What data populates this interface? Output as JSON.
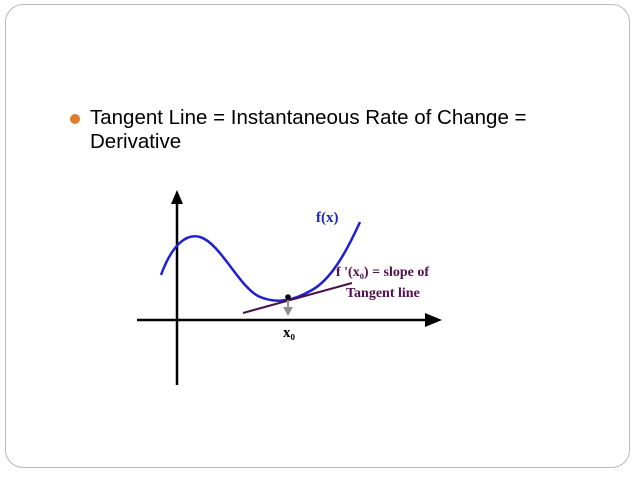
{
  "bullet": {
    "text": "Tangent Line = Instantaneous Rate of Change = Derivative",
    "dot_color": "#e07a2c"
  },
  "diagram": {
    "function_label": "f(x)",
    "slope_label": "f '(x₀) = slope of",
    "tangent_label": "Tangent line",
    "point_label": "x₀",
    "colors": {
      "curve": "#2020d0",
      "tangent": "#4a1048",
      "label": "#501050",
      "function_label": "#2020d0",
      "axes": "#000000",
      "pointer": "#909090"
    }
  }
}
